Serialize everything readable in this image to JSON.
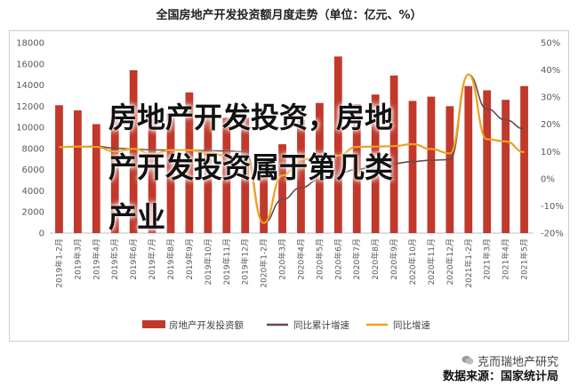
{
  "chart_data": {
    "type": "bar",
    "title": "全国房地产开发投资额月度走势（单位：亿元、%）",
    "categories": [
      "2019年1-2月",
      "2019年3月",
      "2019年4月",
      "2019年5月",
      "2019年6月",
      "2019年7月",
      "2019年8月",
      "2019年9月",
      "2019年10月",
      "2019年11月",
      "2019年12月",
      "2020年1-2月",
      "2020年3月",
      "2020年4月",
      "2020年5月",
      "2020年6月",
      "2020年7月",
      "2020年8月",
      "2020年9月",
      "2020年10月",
      "2020年11月",
      "2020年12月",
      "2021年1-2月",
      "2021年3月",
      "2021年4月",
      "2021年5月"
    ],
    "y_left": {
      "range": [
        0,
        18000
      ],
      "ticks": [
        "0",
        "2000",
        "4000",
        "6000",
        "8000",
        "10000",
        "12000",
        "14000",
        "16000",
        "18000"
      ]
    },
    "y_right": {
      "range": [
        -20,
        50
      ],
      "ticks": [
        "-20%",
        "-10%",
        "0%",
        "10%",
        "20%",
        "30%",
        "40%",
        "50%"
      ]
    },
    "series": [
      {
        "name": "房地产开发投资额",
        "kind": "bar",
        "axis": "left",
        "color": "#c0392b",
        "values": [
          12090,
          11600,
          10300,
          11800,
          15400,
          11400,
          11300,
          13300,
          11100,
          10900,
          10900,
          6900,
          8400,
          10700,
          12300,
          16700,
          12200,
          13100,
          14900,
          12500,
          12900,
          12000,
          13900,
          13500,
          12600,
          13900
        ]
      },
      {
        "name": "同比累计增速",
        "kind": "line",
        "axis": "right",
        "color": "#6b4a4a",
        "values": [
          11.6,
          11.8,
          11.9,
          11.2,
          10.9,
          10.6,
          10.5,
          10.5,
          10.3,
          10.2,
          9.9,
          -16.3,
          -7.7,
          -3.3,
          -0.3,
          1.9,
          3.4,
          4.6,
          5.6,
          6.3,
          6.8,
          7.0,
          38.3,
          25.6,
          21.6,
          18.3
        ]
      },
      {
        "name": "同比增速",
        "kind": "line",
        "axis": "right",
        "color": "#f0a01e",
        "values": [
          11.6,
          11.8,
          11.7,
          10.0,
          11.0,
          9.0,
          10.5,
          10.5,
          9.6,
          8.4,
          8.0,
          -16.3,
          1.2,
          7.0,
          8.1,
          8.5,
          11.7,
          11.8,
          12.0,
          12.7,
          10.9,
          9.3,
          38.3,
          14.5,
          13.7,
          9.8
        ]
      }
    ],
    "legend": "bottom",
    "grid": false
  },
  "overlay": {
    "lines": [
      "房地产开发投资，房地",
      "产开发投资属于第几类",
      "产业"
    ]
  },
  "watermark": {
    "icon": "wechat-icon",
    "text": "克而瑞地产研究"
  },
  "source": "数据来源：国家统计局"
}
